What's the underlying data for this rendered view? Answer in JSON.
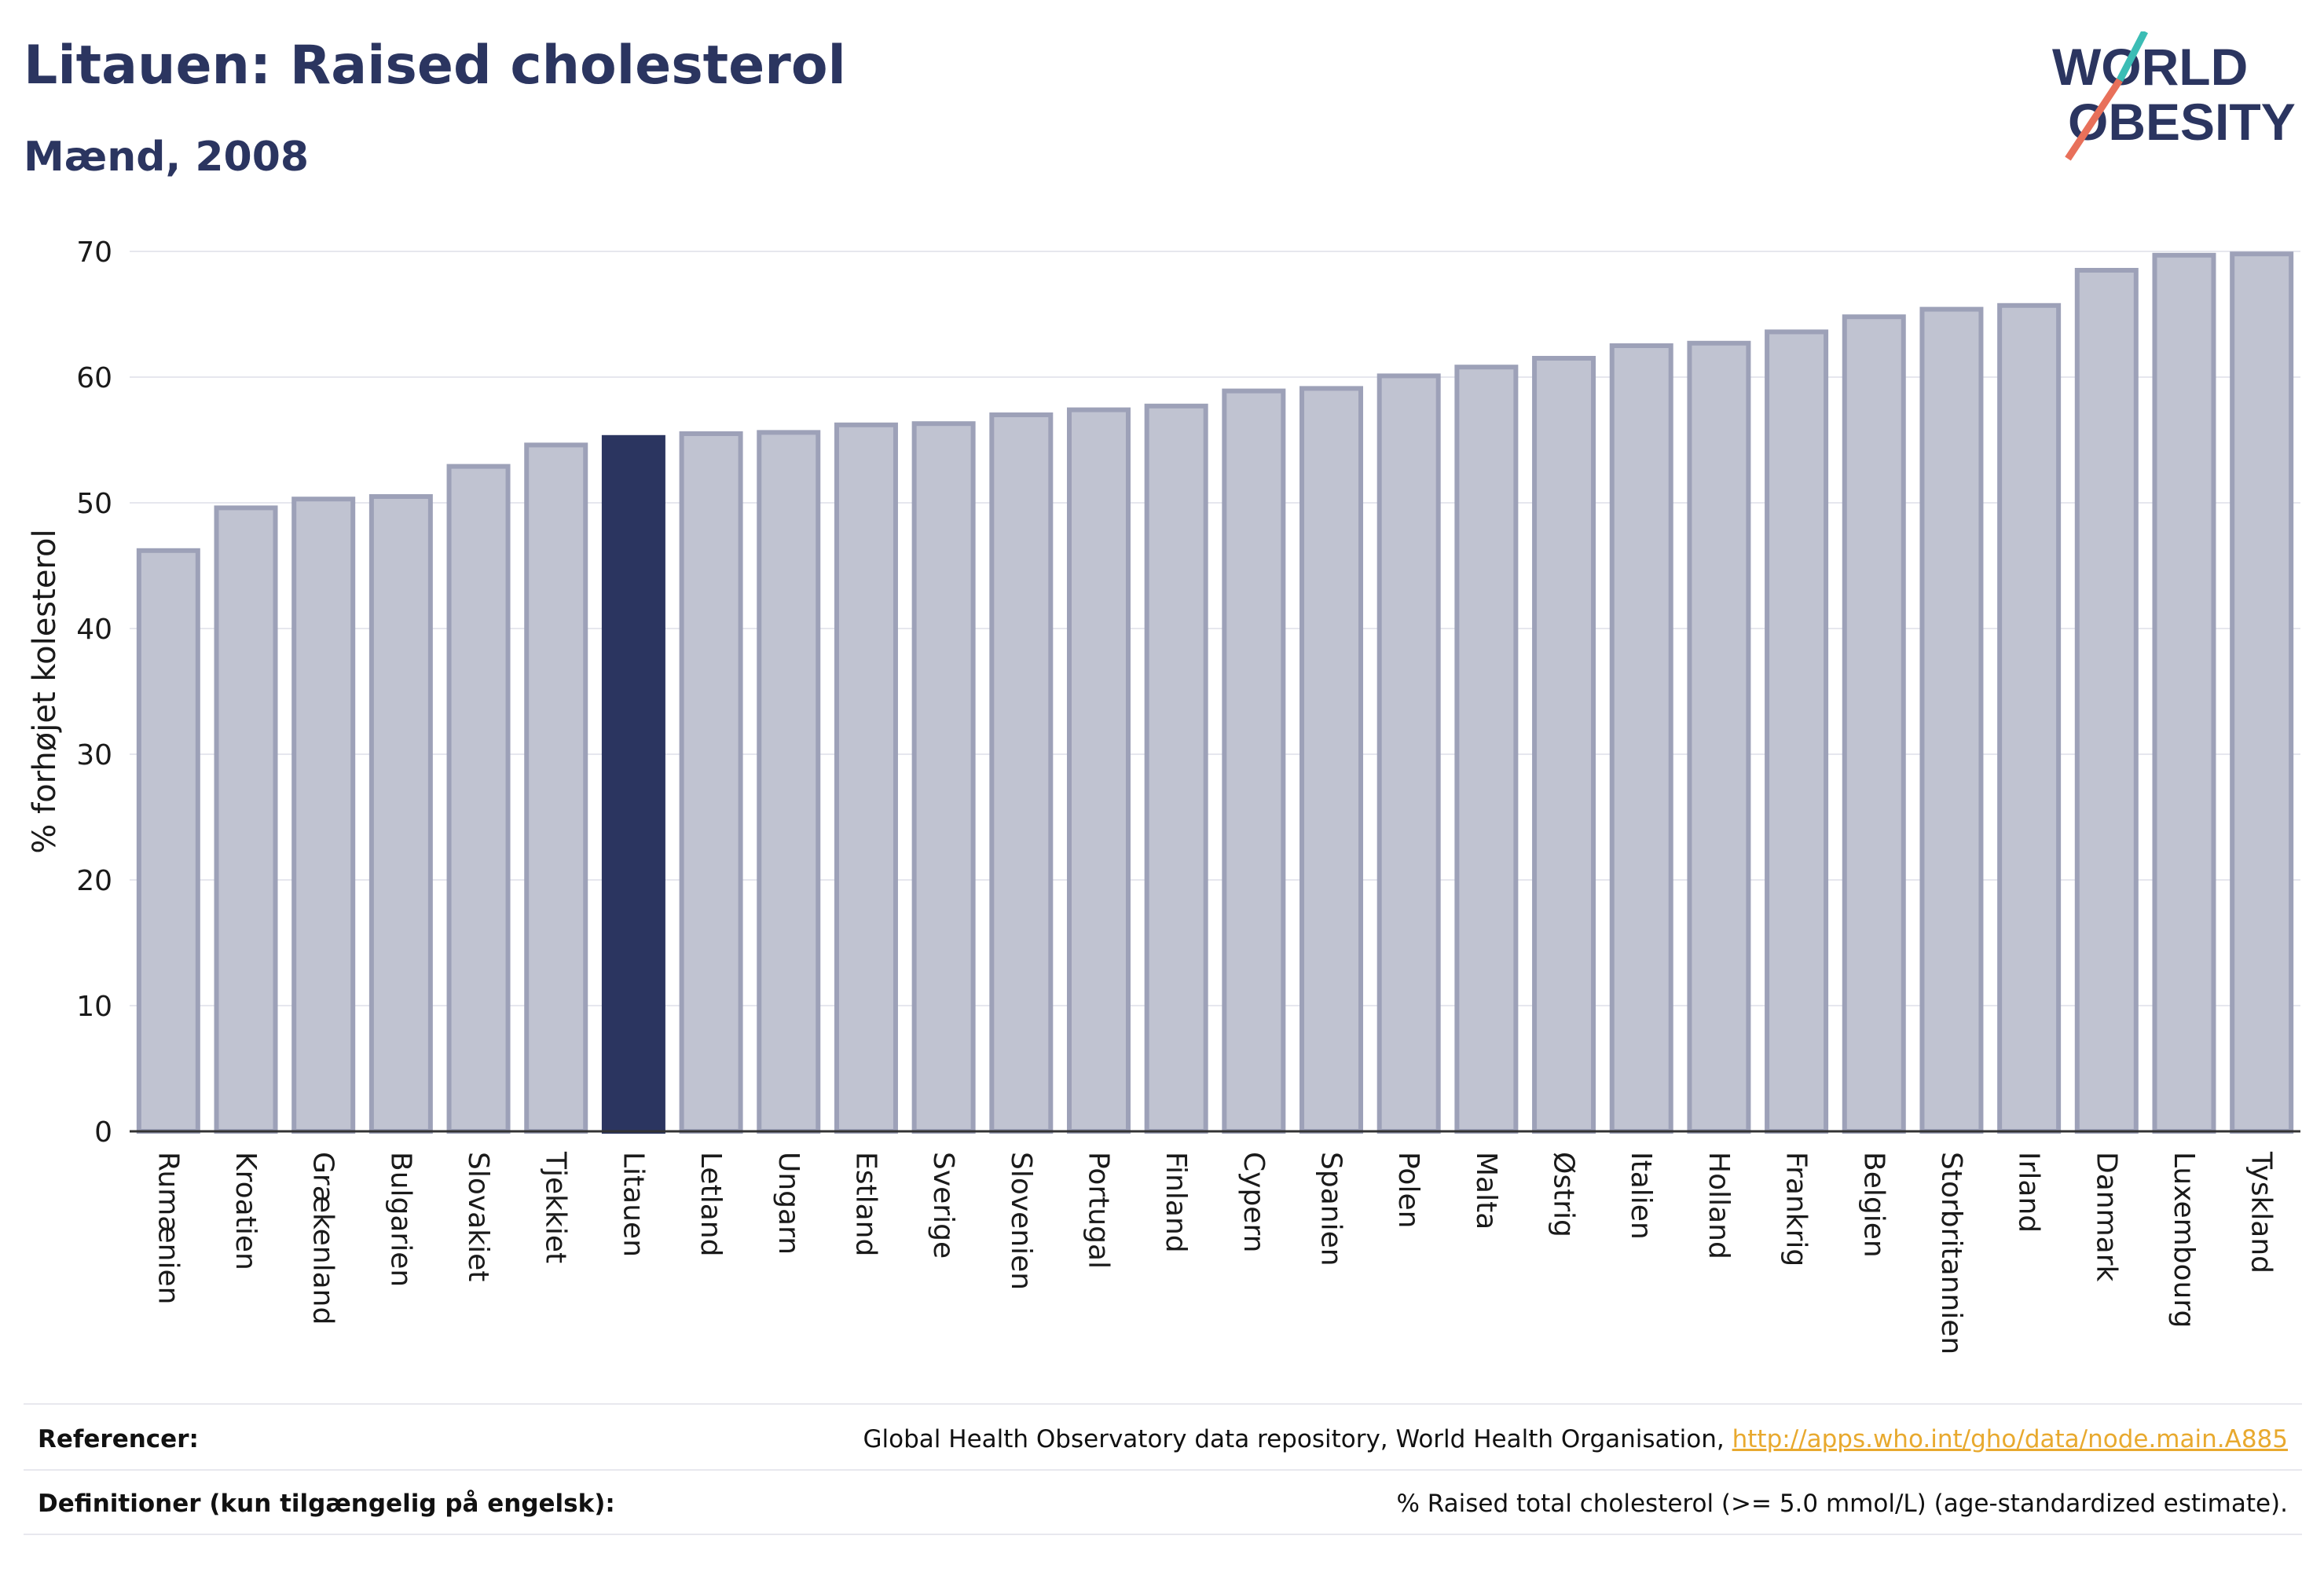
{
  "header": {
    "title": "Litauen: Raised cholesterol",
    "subtitle": "Mænd, 2008"
  },
  "logo": {
    "line1": "WORLD",
    "line2": "OBESITY"
  },
  "chart_data": {
    "type": "bar",
    "ylabel": "% forhøjet kolesterol",
    "xlabel": "",
    "ylim": [
      0,
      70
    ],
    "yticks": [
      0,
      10,
      20,
      30,
      40,
      50,
      60,
      70
    ],
    "grid": true,
    "highlight": "Litauen",
    "colors": {
      "bar": "#c0c3d1",
      "bar_edge": "#9da1b8",
      "highlight": "#2b3560"
    },
    "categories": [
      "Rumænien",
      "Kroatien",
      "Grækenland",
      "Bulgarien",
      "Slovakiet",
      "Tjekkiet",
      "Litauen",
      "Letland",
      "Ungarn",
      "Estland",
      "Sverige",
      "Slovenien",
      "Portugal",
      "Finland",
      "Cypern",
      "Spanien",
      "Polen",
      "Malta",
      "Østrig",
      "Italien",
      "Holland",
      "Frankrig",
      "Belgien",
      "Storbritannien",
      "Irland",
      "Danmark",
      "Luxembourg",
      "Tyskland"
    ],
    "values": [
      46.2,
      49.6,
      50.3,
      50.5,
      52.9,
      54.6,
      55.2,
      55.5,
      55.6,
      56.2,
      56.3,
      57.0,
      57.4,
      57.7,
      58.9,
      59.1,
      60.1,
      60.8,
      61.5,
      62.5,
      62.7,
      63.6,
      64.8,
      65.4,
      65.7,
      68.5,
      69.7,
      69.8
    ]
  },
  "footer": {
    "references_label": "Referencer:",
    "references_text": "Global Health Observatory data repository, World Health Organisation, ",
    "references_link": "http://apps.who.int/gho/data/node.main.A885",
    "definitions_label": "Definitioner (kun tilgængelig på engelsk):",
    "definitions_text": "% Raised total cholesterol (>= 5.0 mmol/L) (age-standardized estimate)."
  }
}
